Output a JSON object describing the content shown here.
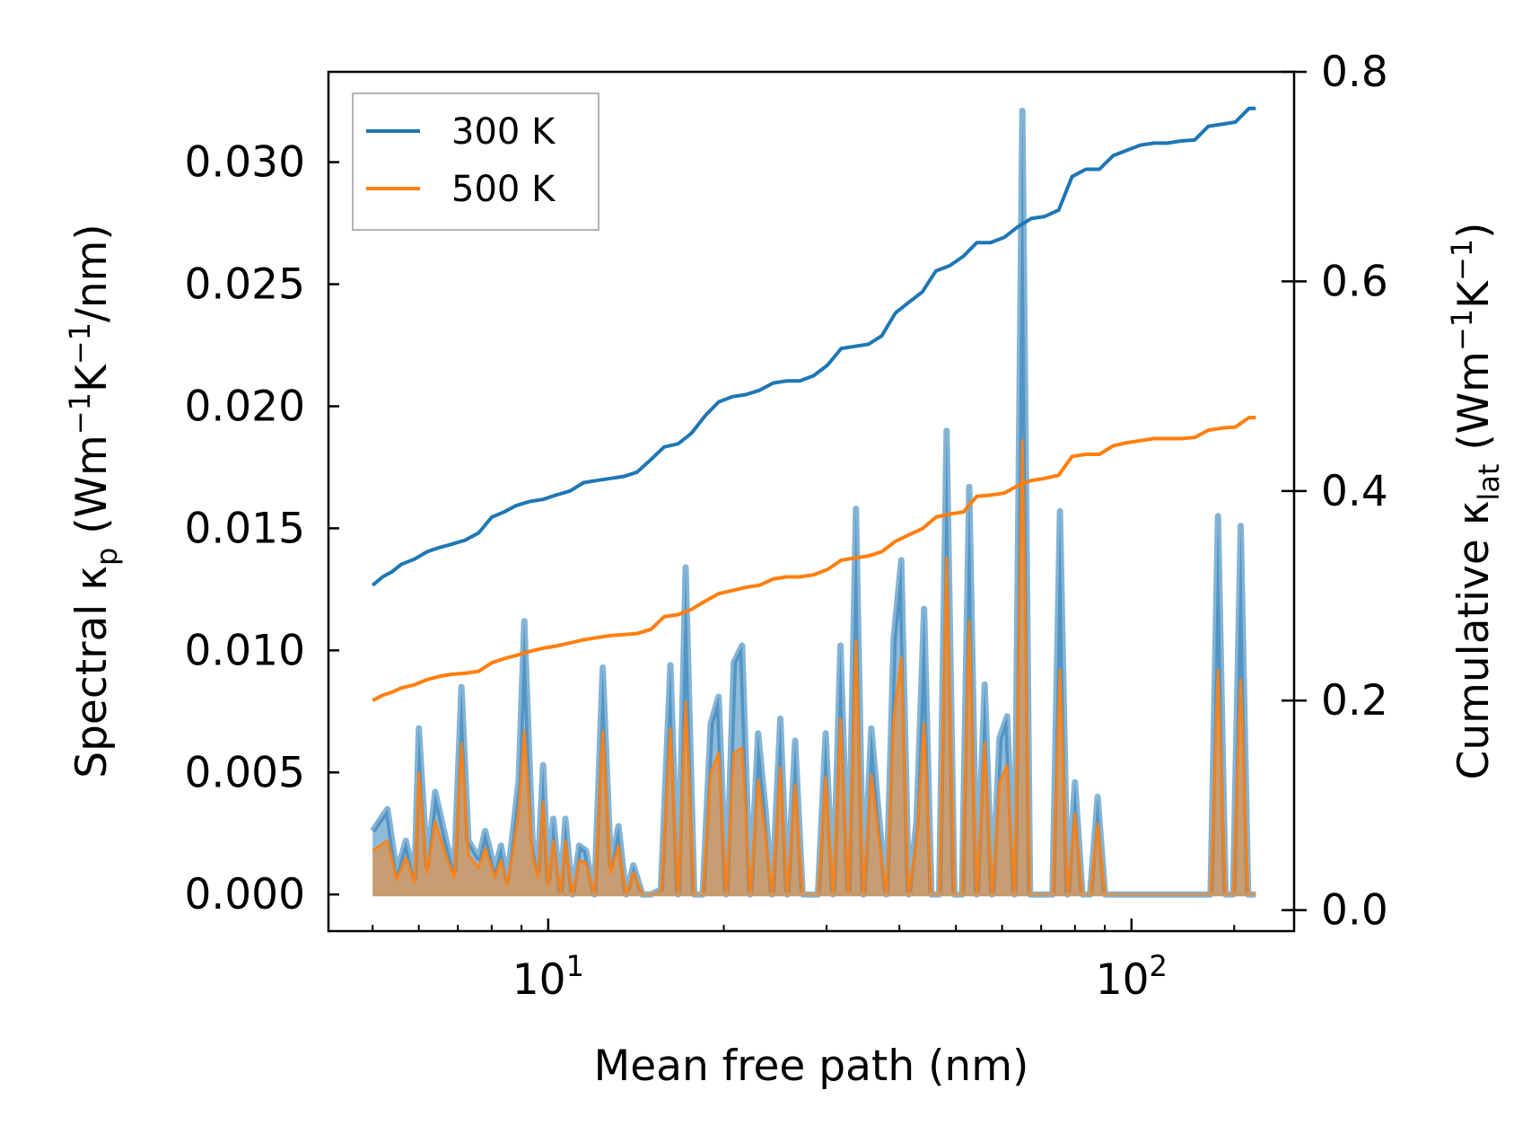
{
  "chart_data": {
    "type": "line",
    "xlabel": "Mean free path (nm)",
    "ylabel_left": {
      "prefix": "Spectral κ",
      "sub": "p",
      "unit_pre": " (Wm",
      "sup1": "−1",
      "mid": "K",
      "sup2": "−1",
      "unit_post": "/nm)"
    },
    "ylabel_right": {
      "prefix": "Cumulative κ",
      "sub": "lat",
      "unit_pre": " (Wm",
      "sup1": "−1",
      "mid": "K",
      "sup2": "−1",
      "unit_post": ")"
    },
    "x_scale": "log",
    "xlim": [
      4.2,
      190
    ],
    "ylim_left": [
      -0.0015,
      0.0337
    ],
    "ylim_right": [
      -0.02,
      0.8
    ],
    "x_ticks": [
      {
        "value": 10,
        "base": "10",
        "exp": "1"
      },
      {
        "value": 100,
        "base": "10",
        "exp": "2"
      }
    ],
    "y_ticks_left": [
      "0.000",
      "0.005",
      "0.010",
      "0.015",
      "0.020",
      "0.025",
      "0.030"
    ],
    "y_ticks_right": [
      "0.0",
      "0.2",
      "0.4",
      "0.6",
      "0.8"
    ],
    "legend": {
      "position": "upper-left",
      "entries": [
        {
          "label": "300 K",
          "color": "#1f77b4"
        },
        {
          "label": "500 K",
          "color": "#ff7f0e"
        }
      ]
    },
    "spectral_series": [
      {
        "name": "300 K",
        "color": "#1f77b4",
        "x": [
          5,
          5.3,
          5.5,
          5.7,
          5.9,
          6.0,
          6.2,
          6.4,
          6.7,
          6.9,
          7.1,
          7.3,
          7.6,
          7.8,
          8.1,
          8.3,
          8.5,
          8.7,
          8.9,
          9.1,
          9.4,
          9.6,
          9.8,
          10.0,
          10.2,
          10.5,
          10.7,
          11.0,
          11.3,
          11.6,
          12.0,
          12.4,
          12.8,
          13.2,
          13.6,
          14.0,
          14.5,
          15.0,
          15.6,
          16.2,
          16.7,
          17.2,
          17.8,
          18.4,
          19.0,
          19.6,
          20.2,
          20.8,
          21.5,
          22.2,
          22.9,
          23.6,
          24.2,
          25.0,
          25.7,
          26.5,
          27.3,
          28.1,
          29.0,
          29.9,
          30.8,
          31.7,
          32.7,
          33.7,
          34.7,
          35.8,
          36.9,
          38.0,
          39.1,
          40.3,
          41.5,
          42.8,
          44.1,
          45.4,
          46.8,
          48.2,
          49.7,
          51.2,
          52.7,
          54.3,
          56.0,
          57.7,
          59.4,
          61.2,
          63.0,
          65.0,
          67.0,
          69.0,
          71.1,
          73.2,
          75.4,
          77.7,
          80.0,
          82.4,
          84.9,
          87.5,
          90.1,
          92.8,
          95.6,
          98.5,
          101.5,
          104.5,
          107.7,
          110.9,
          114.3,
          117.7,
          121.3,
          125.0,
          128.7,
          132.6,
          136.6,
          140.7,
          145.0,
          149.3,
          153.9,
          158.5,
          163.3
        ],
        "y": [
          0.0026,
          0.0035,
          0.0009,
          0.0022,
          0.0007,
          0.0068,
          0.0012,
          0.0042,
          0.0021,
          0.001,
          0.0085,
          0.0022,
          0.0015,
          0.0026,
          0.001,
          0.002,
          0.0006,
          0.0026,
          0.0047,
          0.0112,
          0.0022,
          0.001,
          0.0053,
          0.0006,
          0.0031,
          0.0001,
          0.0031,
          0.0,
          0.002,
          0.0018,
          0.0,
          0.0093,
          0.0012,
          0.0028,
          0.0,
          0.0012,
          0.0,
          0.0,
          0.0002,
          0.0094,
          0.0,
          0.0134,
          0.0,
          0.0,
          0.007,
          0.0081,
          0.0,
          0.0095,
          0.0102,
          0.0,
          0.0066,
          0.0034,
          0.0,
          0.0072,
          0.0,
          0.0063,
          0.0,
          0.0,
          0.0,
          0.0066,
          0.0,
          0.0102,
          0.0002,
          0.0158,
          0.0,
          0.0068,
          0.0032,
          0.0,
          0.0105,
          0.0137,
          0.0,
          0.003,
          0.0117,
          0.0,
          0.0,
          0.019,
          0.0,
          0.0,
          0.0167,
          0.0,
          0.0086,
          0.0,
          0.0064,
          0.0073,
          0.0,
          0.0321,
          0.0,
          0.0,
          0.0,
          0.0,
          0.0157,
          0.0,
          0.0046,
          0.0,
          0.0,
          0.004,
          0.0,
          0.0,
          0.0,
          0.0,
          0.0,
          0.0,
          0.0,
          0.0,
          0.0,
          0.0,
          0.0,
          0.0,
          0.0,
          0.0,
          0.0,
          0.0155,
          0.0,
          0.0,
          0.0151,
          0.0,
          0.0
        ]
      },
      {
        "name": "500 K",
        "color": "#ff7f0e",
        "x": [
          5,
          5.3,
          5.5,
          5.7,
          5.9,
          6.0,
          6.2,
          6.4,
          6.7,
          6.9,
          7.1,
          7.3,
          7.6,
          7.8,
          8.1,
          8.3,
          8.5,
          8.7,
          8.9,
          9.1,
          9.4,
          9.6,
          9.8,
          10.0,
          10.2,
          10.5,
          10.7,
          11.0,
          11.3,
          11.6,
          12.0,
          12.4,
          12.8,
          13.2,
          13.6,
          14.0,
          14.5,
          15.0,
          15.6,
          16.2,
          16.7,
          17.2,
          17.8,
          18.4,
          19.0,
          19.6,
          20.2,
          20.8,
          21.5,
          22.2,
          22.9,
          23.6,
          24.2,
          25.0,
          25.7,
          26.5,
          27.3,
          28.1,
          29.0,
          29.9,
          30.8,
          31.7,
          32.7,
          33.7,
          34.7,
          35.8,
          36.9,
          38.0,
          39.1,
          40.3,
          41.5,
          42.8,
          44.1,
          45.4,
          46.8,
          48.2,
          49.7,
          51.2,
          52.7,
          54.3,
          56.0,
          57.7,
          59.4,
          61.2,
          63.0,
          65.0,
          67.0,
          69.0,
          71.1,
          73.2,
          75.4,
          77.7,
          80.0,
          82.4,
          84.9,
          87.5,
          90.1,
          92.8,
          95.6,
          98.5,
          101.5,
          104.5,
          107.7,
          110.9,
          114.3,
          117.7,
          121.3,
          125.0,
          128.7,
          132.6,
          136.6,
          140.7,
          145.0,
          149.3,
          153.9,
          158.5,
          163.3
        ],
        "y": [
          0.0018,
          0.0022,
          0.0006,
          0.0015,
          0.0005,
          0.005,
          0.0009,
          0.003,
          0.0015,
          0.0007,
          0.0062,
          0.0016,
          0.0011,
          0.0019,
          0.0007,
          0.0014,
          0.0004,
          0.0018,
          0.0034,
          0.0067,
          0.0016,
          0.0007,
          0.0038,
          0.0004,
          0.0022,
          0.0001,
          0.0022,
          0.0,
          0.0014,
          0.0013,
          0.0,
          0.0067,
          0.0009,
          0.002,
          0.0,
          0.0009,
          0.0,
          0.0,
          0.0001,
          0.0068,
          0.0,
          0.0079,
          0.0,
          0.0,
          0.005,
          0.0058,
          0.0,
          0.0058,
          0.006,
          0.0,
          0.0047,
          0.0024,
          0.0,
          0.0052,
          0.0,
          0.0045,
          0.0,
          0.0,
          0.0,
          0.0048,
          0.0,
          0.0072,
          0.0001,
          0.0104,
          0.0,
          0.0049,
          0.0023,
          0.0,
          0.0072,
          0.0097,
          0.0,
          0.0022,
          0.007,
          0.0,
          0.0,
          0.0138,
          0.0,
          0.0,
          0.0112,
          0.0,
          0.0062,
          0.0,
          0.0046,
          0.0053,
          0.0,
          0.0186,
          0.0,
          0.0,
          0.0,
          0.0,
          0.0092,
          0.0,
          0.0033,
          0.0,
          0.0,
          0.0029,
          0.0,
          0.0,
          0.0,
          0.0,
          0.0,
          0.0,
          0.0,
          0.0,
          0.0,
          0.0,
          0.0,
          0.0,
          0.0,
          0.0,
          0.0,
          0.0092,
          0.0,
          0.0,
          0.0088,
          0.0,
          0.0
        ]
      }
    ],
    "cumulative_series": [
      {
        "name": "300 K",
        "color": "#1f77b4",
        "x": [
          5.0,
          5.2,
          5.4,
          5.6,
          5.9,
          6.2,
          6.5,
          6.8,
          7.2,
          7.6,
          8.0,
          8.4,
          8.8,
          9.3,
          9.8,
          10.3,
          10.9,
          11.5,
          12.1,
          12.8,
          13.5,
          14.2,
          15.0,
          15.8,
          16.7,
          17.6,
          18.6,
          19.6,
          20.7,
          21.8,
          23.0,
          24.3,
          25.6,
          27.0,
          28.5,
          30.1,
          31.8,
          33.5,
          35.4,
          37.3,
          39.4,
          41.5,
          43.8,
          46.2,
          48.8,
          51.5,
          54.3,
          57.3,
          60.5,
          63.8,
          67.3,
          71.0,
          75.0,
          79.1,
          83.5,
          88.1,
          93.0,
          98.1,
          103.5,
          109.2,
          115.2,
          121.6,
          128.3,
          135.4,
          142.8,
          150.7,
          159.0,
          163.3
        ],
        "y": [
          0.31,
          0.318,
          0.323,
          0.33,
          0.335,
          0.342,
          0.346,
          0.349,
          0.353,
          0.36,
          0.375,
          0.38,
          0.386,
          0.39,
          0.392,
          0.396,
          0.4,
          0.408,
          0.41,
          0.412,
          0.414,
          0.418,
          0.43,
          0.442,
          0.445,
          0.455,
          0.472,
          0.485,
          0.49,
          0.492,
          0.496,
          0.503,
          0.505,
          0.505,
          0.51,
          0.52,
          0.536,
          0.538,
          0.54,
          0.548,
          0.57,
          0.58,
          0.59,
          0.61,
          0.615,
          0.624,
          0.637,
          0.637,
          0.642,
          0.652,
          0.66,
          0.662,
          0.668,
          0.7,
          0.707,
          0.707,
          0.72,
          0.725,
          0.73,
          0.732,
          0.732,
          0.734,
          0.735,
          0.748,
          0.75,
          0.752,
          0.765,
          0.765
        ]
      },
      {
        "name": "500 K",
        "color": "#ff7f0e",
        "x": [
          5.0,
          5.2,
          5.4,
          5.6,
          5.9,
          6.2,
          6.5,
          6.8,
          7.2,
          7.6,
          8.0,
          8.4,
          8.8,
          9.3,
          9.8,
          10.3,
          10.9,
          11.5,
          12.1,
          12.8,
          13.5,
          14.2,
          15.0,
          15.8,
          16.7,
          17.6,
          18.6,
          19.6,
          20.7,
          21.8,
          23.0,
          24.3,
          25.6,
          27.0,
          28.5,
          30.1,
          31.8,
          33.5,
          35.4,
          37.3,
          39.4,
          41.5,
          43.8,
          46.2,
          48.8,
          51.5,
          54.3,
          57.3,
          60.5,
          63.8,
          67.3,
          71.0,
          75.0,
          79.1,
          83.5,
          88.1,
          93.0,
          98.1,
          103.5,
          109.2,
          115.2,
          121.6,
          128.3,
          135.4,
          142.8,
          150.7,
          159.0,
          163.3
        ],
        "y": [
          0.2,
          0.205,
          0.208,
          0.212,
          0.215,
          0.22,
          0.223,
          0.225,
          0.226,
          0.228,
          0.236,
          0.24,
          0.243,
          0.247,
          0.25,
          0.252,
          0.255,
          0.258,
          0.26,
          0.262,
          0.263,
          0.264,
          0.268,
          0.28,
          0.282,
          0.287,
          0.295,
          0.302,
          0.305,
          0.308,
          0.31,
          0.316,
          0.318,
          0.318,
          0.32,
          0.325,
          0.334,
          0.336,
          0.338,
          0.342,
          0.352,
          0.358,
          0.364,
          0.375,
          0.378,
          0.38,
          0.395,
          0.396,
          0.398,
          0.405,
          0.41,
          0.412,
          0.415,
          0.433,
          0.435,
          0.435,
          0.443,
          0.446,
          0.448,
          0.45,
          0.45,
          0.45,
          0.451,
          0.458,
          0.46,
          0.461,
          0.47,
          0.47
        ]
      }
    ]
  }
}
